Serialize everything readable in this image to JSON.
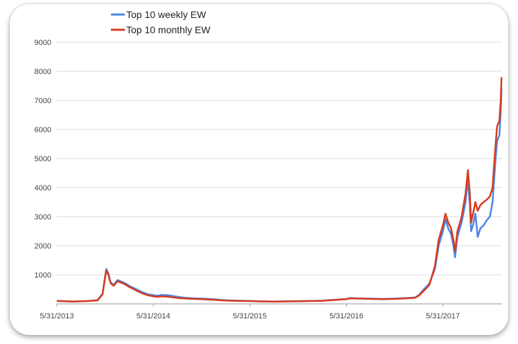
{
  "chart_data": {
    "type": "line",
    "title": "",
    "xlabel": "",
    "ylabel": "",
    "legend_position": "top-left",
    "grid": true,
    "xlim": [
      "2013-05-31",
      "2018-01-10"
    ],
    "ylim": [
      0,
      9000
    ],
    "y_ticks": [
      1000,
      2000,
      3000,
      4000,
      5000,
      6000,
      7000,
      8000,
      9000
    ],
    "x_ticks": [
      "5/31/2013",
      "5/31/2014",
      "5/31/2015",
      "5/31/2016",
      "5/31/2017"
    ],
    "x_tick_dates": [
      "2013-05-31",
      "2014-05-31",
      "2015-05-31",
      "2016-05-31",
      "2017-05-31"
    ],
    "series": [
      {
        "name": "Top 10 weekly EW",
        "color": "#4a86e8",
        "points": [
          [
            "2013-05-31",
            100
          ],
          [
            "2013-07-01",
            90
          ],
          [
            "2013-08-01",
            80
          ],
          [
            "2013-09-01",
            90
          ],
          [
            "2013-10-01",
            100
          ],
          [
            "2013-11-01",
            130
          ],
          [
            "2013-11-20",
            350
          ],
          [
            "2013-12-04",
            1200
          ],
          [
            "2013-12-12",
            1050
          ],
          [
            "2013-12-20",
            750
          ],
          [
            "2014-01-01",
            650
          ],
          [
            "2014-01-15",
            820
          ],
          [
            "2014-02-01",
            760
          ],
          [
            "2014-02-15",
            700
          ],
          [
            "2014-03-01",
            620
          ],
          [
            "2014-03-15",
            560
          ],
          [
            "2014-04-01",
            480
          ],
          [
            "2014-04-20",
            400
          ],
          [
            "2014-05-10",
            330
          ],
          [
            "2014-05-31",
            300
          ],
          [
            "2014-06-15",
            280
          ],
          [
            "2014-07-01",
            310
          ],
          [
            "2014-08-01",
            290
          ],
          [
            "2014-09-01",
            240
          ],
          [
            "2014-10-01",
            210
          ],
          [
            "2014-11-01",
            190
          ],
          [
            "2014-12-01",
            180
          ],
          [
            "2015-01-15",
            160
          ],
          [
            "2015-02-15",
            130
          ],
          [
            "2015-03-15",
            120
          ],
          [
            "2015-04-15",
            110
          ],
          [
            "2015-05-31",
            100
          ],
          [
            "2015-07-01",
            90
          ],
          [
            "2015-08-01",
            85
          ],
          [
            "2015-09-01",
            80
          ],
          [
            "2015-10-01",
            85
          ],
          [
            "2015-11-01",
            90
          ],
          [
            "2015-12-01",
            95
          ],
          [
            "2016-01-15",
            100
          ],
          [
            "2016-03-01",
            110
          ],
          [
            "2016-05-31",
            170
          ],
          [
            "2016-06-15",
            200
          ],
          [
            "2016-07-15",
            190
          ],
          [
            "2016-09-01",
            180
          ],
          [
            "2016-10-15",
            170
          ],
          [
            "2016-12-01",
            180
          ],
          [
            "2017-01-15",
            200
          ],
          [
            "2017-02-15",
            220
          ],
          [
            "2017-03-01",
            300
          ],
          [
            "2017-03-20",
            500
          ],
          [
            "2017-04-10",
            700
          ],
          [
            "2017-05-01",
            1200
          ],
          [
            "2017-05-15",
            2000
          ],
          [
            "2017-05-31",
            2500
          ],
          [
            "2017-06-10",
            2900
          ],
          [
            "2017-06-20",
            2600
          ],
          [
            "2017-07-01",
            2400
          ],
          [
            "2017-07-10",
            2000
          ],
          [
            "2017-07-16",
            1600
          ],
          [
            "2017-07-25",
            2300
          ],
          [
            "2017-08-10",
            2800
          ],
          [
            "2017-08-25",
            3500
          ],
          [
            "2017-09-03",
            4300
          ],
          [
            "2017-09-10",
            3400
          ],
          [
            "2017-09-15",
            2500
          ],
          [
            "2017-09-22",
            2700
          ],
          [
            "2017-10-01",
            3100
          ],
          [
            "2017-10-10",
            2300
          ],
          [
            "2017-10-20",
            2600
          ],
          [
            "2017-11-01",
            2700
          ],
          [
            "2017-11-15",
            2900
          ],
          [
            "2017-11-25",
            3000
          ],
          [
            "2017-12-05",
            3500
          ],
          [
            "2017-12-15",
            4800
          ],
          [
            "2017-12-22",
            5600
          ],
          [
            "2017-12-31",
            5800
          ],
          [
            "2018-01-05",
            6600
          ],
          [
            "2018-01-08",
            7400
          ]
        ]
      },
      {
        "name": "Top 10 monthly EW",
        "color": "#d93a1d",
        "points": [
          [
            "2013-05-31",
            100
          ],
          [
            "2013-07-01",
            90
          ],
          [
            "2013-08-01",
            80
          ],
          [
            "2013-09-01",
            90
          ],
          [
            "2013-10-01",
            100
          ],
          [
            "2013-11-01",
            120
          ],
          [
            "2013-11-20",
            330
          ],
          [
            "2013-12-04",
            1150
          ],
          [
            "2013-12-12",
            1000
          ],
          [
            "2013-12-20",
            720
          ],
          [
            "2014-01-01",
            620
          ],
          [
            "2014-01-15",
            780
          ],
          [
            "2014-02-01",
            720
          ],
          [
            "2014-02-15",
            660
          ],
          [
            "2014-03-01",
            580
          ],
          [
            "2014-03-15",
            520
          ],
          [
            "2014-04-01",
            440
          ],
          [
            "2014-04-20",
            360
          ],
          [
            "2014-05-10",
            300
          ],
          [
            "2014-05-31",
            260
          ],
          [
            "2014-06-15",
            240
          ],
          [
            "2014-07-01",
            260
          ],
          [
            "2014-08-01",
            240
          ],
          [
            "2014-09-01",
            200
          ],
          [
            "2014-10-01",
            180
          ],
          [
            "2014-11-01",
            170
          ],
          [
            "2014-12-01",
            160
          ],
          [
            "2015-01-15",
            140
          ],
          [
            "2015-02-15",
            120
          ],
          [
            "2015-03-15",
            110
          ],
          [
            "2015-04-15",
            100
          ],
          [
            "2015-05-31",
            95
          ],
          [
            "2015-07-01",
            85
          ],
          [
            "2015-08-01",
            80
          ],
          [
            "2015-09-01",
            75
          ],
          [
            "2015-10-01",
            80
          ],
          [
            "2015-11-01",
            85
          ],
          [
            "2015-12-01",
            90
          ],
          [
            "2016-01-15",
            95
          ],
          [
            "2016-03-01",
            105
          ],
          [
            "2016-05-31",
            160
          ],
          [
            "2016-06-15",
            190
          ],
          [
            "2016-07-15",
            180
          ],
          [
            "2016-09-01",
            170
          ],
          [
            "2016-10-15",
            160
          ],
          [
            "2016-12-01",
            170
          ],
          [
            "2017-01-15",
            190
          ],
          [
            "2017-02-15",
            210
          ],
          [
            "2017-03-01",
            280
          ],
          [
            "2017-03-20",
            450
          ],
          [
            "2017-04-10",
            650
          ],
          [
            "2017-05-01",
            1300
          ],
          [
            "2017-05-15",
            2200
          ],
          [
            "2017-05-31",
            2700
          ],
          [
            "2017-06-10",
            3100
          ],
          [
            "2017-06-20",
            2800
          ],
          [
            "2017-07-01",
            2600
          ],
          [
            "2017-07-10",
            2200
          ],
          [
            "2017-07-16",
            1800
          ],
          [
            "2017-07-25",
            2500
          ],
          [
            "2017-08-10",
            3000
          ],
          [
            "2017-08-25",
            3800
          ],
          [
            "2017-09-03",
            4600
          ],
          [
            "2017-09-10",
            3800
          ],
          [
            "2017-09-15",
            2800
          ],
          [
            "2017-09-22",
            3100
          ],
          [
            "2017-10-01",
            3500
          ],
          [
            "2017-10-10",
            3200
          ],
          [
            "2017-10-20",
            3400
          ],
          [
            "2017-11-01",
            3500
          ],
          [
            "2017-11-15",
            3600
          ],
          [
            "2017-11-25",
            3700
          ],
          [
            "2017-12-05",
            4000
          ],
          [
            "2017-12-15",
            5300
          ],
          [
            "2017-12-22",
            6100
          ],
          [
            "2017-12-31",
            6300
          ],
          [
            "2018-01-05",
            7000
          ],
          [
            "2018-01-08",
            7800
          ]
        ]
      }
    ]
  }
}
